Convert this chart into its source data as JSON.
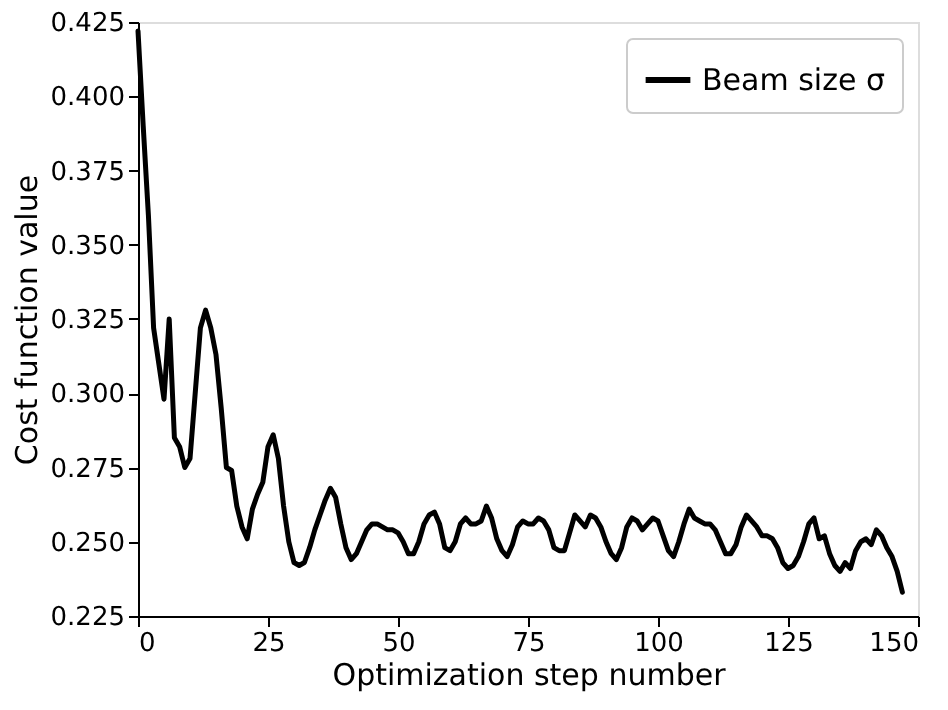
{
  "chart_data": {
    "type": "line",
    "xlabel": "Optimization step number",
    "ylabel": "Cost function value",
    "x": [
      0,
      1,
      2,
      3,
      4,
      5,
      6,
      7,
      8,
      9,
      10,
      11,
      12,
      13,
      14,
      15,
      16,
      17,
      18,
      19,
      20,
      21,
      22,
      23,
      24,
      25,
      26,
      27,
      28,
      29,
      30,
      31,
      32,
      33,
      34,
      35,
      36,
      37,
      38,
      39,
      40,
      41,
      42,
      43,
      44,
      45,
      46,
      47,
      48,
      49,
      50,
      51,
      52,
      53,
      54,
      55,
      56,
      57,
      58,
      59,
      60,
      61,
      62,
      63,
      64,
      65,
      66,
      67,
      68,
      69,
      70,
      71,
      72,
      73,
      74,
      75,
      76,
      77,
      78,
      79,
      80,
      81,
      82,
      83,
      84,
      85,
      86,
      87,
      88,
      89,
      90,
      91,
      92,
      93,
      94,
      95,
      96,
      97,
      98,
      99,
      100,
      101,
      102,
      103,
      104,
      105,
      106,
      107,
      108,
      109,
      110,
      111,
      112,
      113,
      114,
      115,
      116,
      117,
      118,
      119,
      120,
      121,
      122,
      123,
      124,
      125,
      126,
      127,
      128,
      129,
      130,
      131,
      132,
      133,
      134,
      135,
      136,
      137,
      138,
      139,
      140,
      141,
      142,
      143,
      144,
      145,
      146,
      147
    ],
    "series": [
      {
        "name": "Beam size σ",
        "color": "#000000",
        "values": [
          0.422,
          0.39,
          0.36,
          0.322,
          0.31,
          0.298,
          0.325,
          0.285,
          0.282,
          0.275,
          0.278,
          0.3,
          0.322,
          0.328,
          0.322,
          0.313,
          0.295,
          0.275,
          0.274,
          0.262,
          0.255,
          0.251,
          0.261,
          0.266,
          0.27,
          0.282,
          0.286,
          0.278,
          0.262,
          0.25,
          0.243,
          0.242,
          0.243,
          0.248,
          0.254,
          0.259,
          0.264,
          0.268,
          0.265,
          0.256,
          0.248,
          0.244,
          0.246,
          0.25,
          0.254,
          0.256,
          0.256,
          0.255,
          0.254,
          0.254,
          0.253,
          0.25,
          0.246,
          0.246,
          0.25,
          0.256,
          0.259,
          0.26,
          0.256,
          0.248,
          0.247,
          0.25,
          0.256,
          0.258,
          0.256,
          0.256,
          0.257,
          0.262,
          0.258,
          0.251,
          0.247,
          0.245,
          0.249,
          0.255,
          0.257,
          0.256,
          0.256,
          0.258,
          0.257,
          0.254,
          0.248,
          0.247,
          0.247,
          0.253,
          0.259,
          0.257,
          0.255,
          0.259,
          0.258,
          0.255,
          0.25,
          0.246,
          0.244,
          0.248,
          0.255,
          0.258,
          0.257,
          0.254,
          0.256,
          0.258,
          0.257,
          0.252,
          0.247,
          0.245,
          0.25,
          0.256,
          0.261,
          0.258,
          0.257,
          0.256,
          0.256,
          0.254,
          0.25,
          0.246,
          0.246,
          0.249,
          0.255,
          0.259,
          0.257,
          0.255,
          0.252,
          0.252,
          0.251,
          0.248,
          0.243,
          0.241,
          0.242,
          0.245,
          0.25,
          0.256,
          0.258,
          0.251,
          0.252,
          0.246,
          0.242,
          0.24,
          0.243,
          0.241,
          0.247,
          0.25,
          0.251,
          0.249,
          0.254,
          0.252,
          0.248,
          0.245,
          0.24,
          0.233
        ]
      }
    ],
    "xlim": [
      0,
      150
    ],
    "xticks": [
      0,
      25,
      50,
      75,
      100,
      125,
      150
    ],
    "ylim": [
      0.225,
      0.425
    ],
    "yticks": [
      {
        "value": 0.225,
        "label": "0.225"
      },
      {
        "value": 0.25,
        "label": "0.250"
      },
      {
        "value": 0.275,
        "label": "0.275"
      },
      {
        "value": 0.3,
        "label": "0.300"
      },
      {
        "value": 0.325,
        "label": "0.325"
      },
      {
        "value": 0.35,
        "label": "0.350"
      },
      {
        "value": 0.375,
        "label": "0.375"
      },
      {
        "value": 0.4,
        "label": "0.400"
      },
      {
        "value": 0.425,
        "label": "0.425"
      }
    ],
    "grid": false,
    "legend": "top right",
    "line_style": "solid",
    "marker": "none"
  }
}
